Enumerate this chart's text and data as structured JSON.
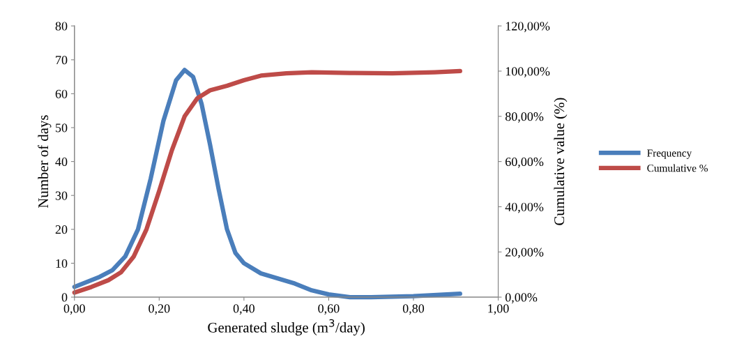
{
  "chart_data": {
    "type": "line",
    "xlabel": "Generated sludge (m$^{3}$/day)",
    "ylabel": "Number of days",
    "y2label": "Cumulative value (%)",
    "xlim": [
      0,
      1
    ],
    "xticks": [
      {
        "value": 0,
        "label": "0,00"
      },
      {
        "value": 0.2,
        "label": "0,20"
      },
      {
        "value": 0.4,
        "label": "0,40"
      },
      {
        "value": 0.6,
        "label": "0,60"
      },
      {
        "value": 0.8,
        "label": "0,80"
      },
      {
        "value": 1,
        "label": "1,00"
      }
    ],
    "ylim": [
      0,
      80
    ],
    "yticks": [
      0,
      10,
      20,
      30,
      40,
      50,
      60,
      70,
      80
    ],
    "y2lim": [
      0,
      120
    ],
    "y2ticks": [
      {
        "value": 0,
        "label": "0,00%"
      },
      {
        "value": 20,
        "label": "20,00%"
      },
      {
        "value": 40,
        "label": "40,00%"
      },
      {
        "value": 60,
        "label": "60,00%"
      },
      {
        "value": 80,
        "label": "80,00%"
      },
      {
        "value": 100,
        "label": "100,00%"
      },
      {
        "value": 120,
        "label": "120,00%"
      }
    ],
    "grid": false,
    "legend": "right",
    "marker": "none",
    "line_style": "solid",
    "series": [
      {
        "name": "Frequency",
        "color": "#4a7ebb",
        "x": [
          0,
          0.03,
          0.06,
          0.09,
          0.12,
          0.15,
          0.18,
          0.21,
          0.24,
          0.26,
          0.28,
          0.3,
          0.32,
          0.34,
          0.36,
          0.38,
          0.4,
          0.44,
          0.48,
          0.52,
          0.56,
          0.6,
          0.65,
          0.7,
          0.8,
          0.91
        ],
        "values": [
          3,
          4.5,
          6,
          8,
          12,
          20,
          35,
          52,
          64,
          67,
          65,
          57,
          45,
          32,
          20,
          13,
          10,
          7,
          5.5,
          4,
          2,
          0.8,
          0,
          0,
          0.3,
          1
        ]
      },
      {
        "name": "Cumulative %",
        "color": "#be4b48",
        "axis": "y2",
        "x": [
          0,
          0.04,
          0.08,
          0.11,
          0.14,
          0.17,
          0.2,
          0.23,
          0.26,
          0.29,
          0.32,
          0.36,
          0.4,
          0.44,
          0.5,
          0.56,
          0.65,
          0.75,
          0.85,
          0.91
        ],
        "values": [
          2,
          4.5,
          7.5,
          11,
          18,
          30,
          47,
          65,
          80,
          88,
          91.5,
          93.5,
          96,
          98,
          99,
          99.5,
          99.2,
          99,
          99.5,
          100
        ]
      }
    ]
  }
}
